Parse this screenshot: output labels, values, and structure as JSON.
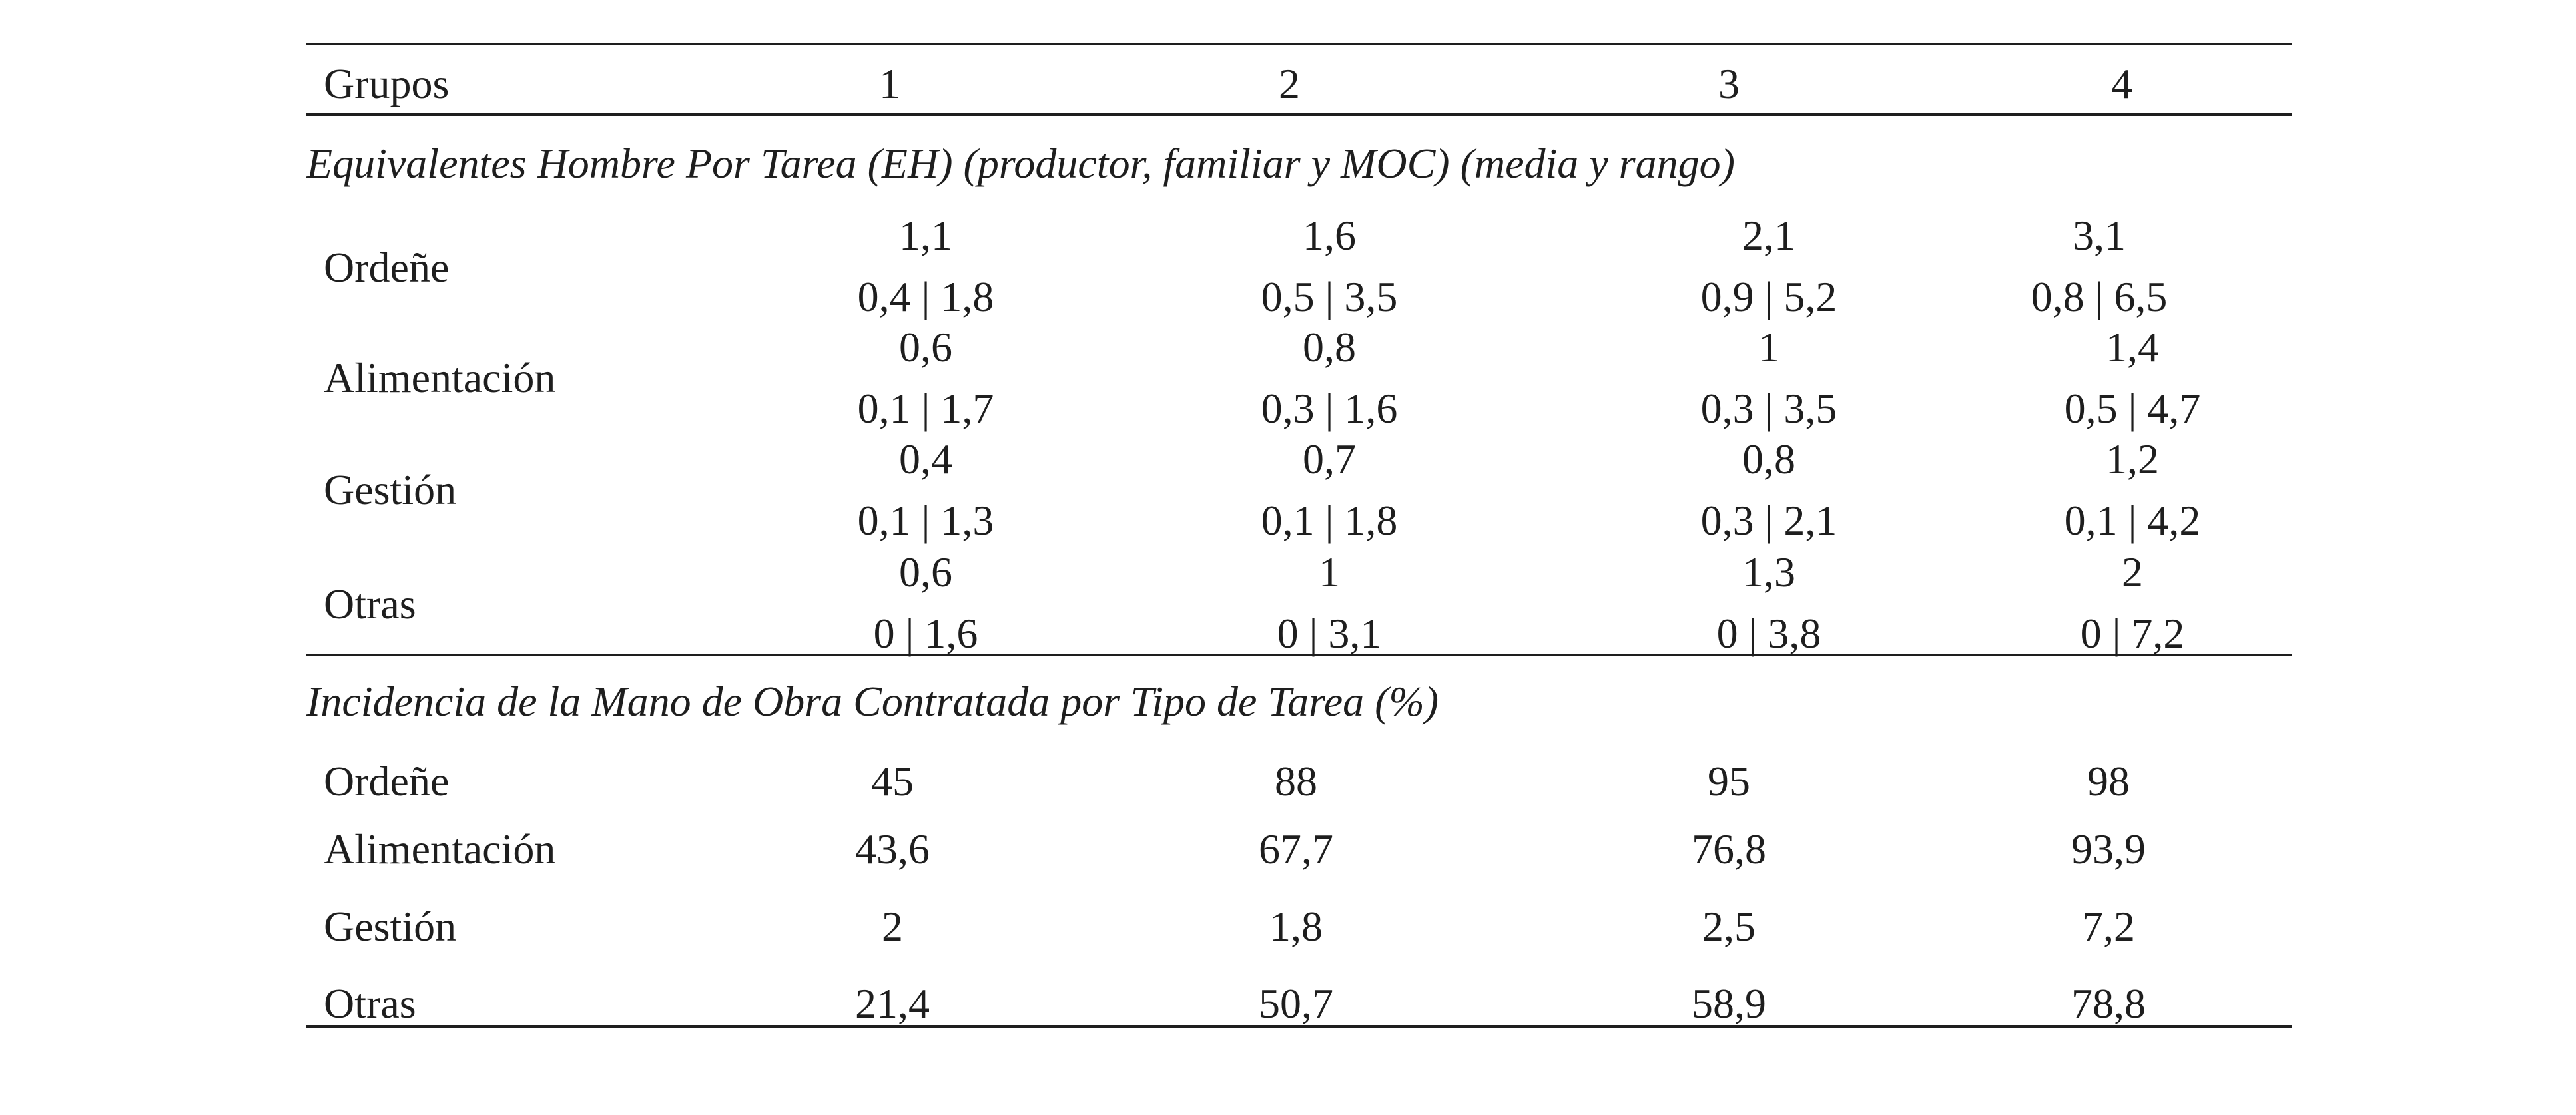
{
  "header": {
    "label": "Grupos",
    "groups": [
      "1",
      "2",
      "3",
      "4"
    ]
  },
  "section1": {
    "title": "Equivalentes Hombre Por Tarea (EH) (productor, familiar y MOC) (media y rango)",
    "rows": [
      {
        "label": "Ordeñe",
        "means": [
          "1,1",
          "1,6",
          "2,1",
          "3,1"
        ],
        "ranges": [
          "0,4 | 1,8",
          "0,5 | 3,5",
          "0,9 | 5,2",
          "0,8 | 6,5"
        ]
      },
      {
        "label": "Alimentación",
        "means": [
          "0,6",
          "0,8",
          "1",
          "1,4"
        ],
        "ranges": [
          "0,1 | 1,7",
          "0,3 | 1,6",
          "0,3 | 3,5",
          "0,5 | 4,7"
        ]
      },
      {
        "label": "Gestión",
        "means": [
          "0,4",
          "0,7",
          "0,8",
          "1,2"
        ],
        "ranges": [
          "0,1 | 1,3",
          "0,1 | 1,8",
          "0,3 | 2,1",
          "0,1 | 4,2"
        ]
      },
      {
        "label": "Otras",
        "means": [
          "0,6",
          "1",
          "1,3",
          "2"
        ],
        "ranges": [
          "0 | 1,6",
          "0 | 3,1",
          "0 | 3,8",
          "0 | 7,2"
        ]
      }
    ]
  },
  "section2": {
    "title": "Incidencia de la Mano de Obra Contratada por Tipo de Tarea (%)",
    "rows": [
      {
        "label": "Ordeñe",
        "values": [
          "45",
          "88",
          "95",
          "98"
        ]
      },
      {
        "label": "Alimentación",
        "values": [
          "43,6",
          "67,7",
          "76,8",
          "93,9"
        ]
      },
      {
        "label": "Gestión",
        "values": [
          "2",
          "1,8",
          "2,5",
          "7,2"
        ]
      },
      {
        "label": "Otras",
        "values": [
          "21,4",
          "50,7",
          "58,9",
          "78,8"
        ]
      }
    ]
  }
}
